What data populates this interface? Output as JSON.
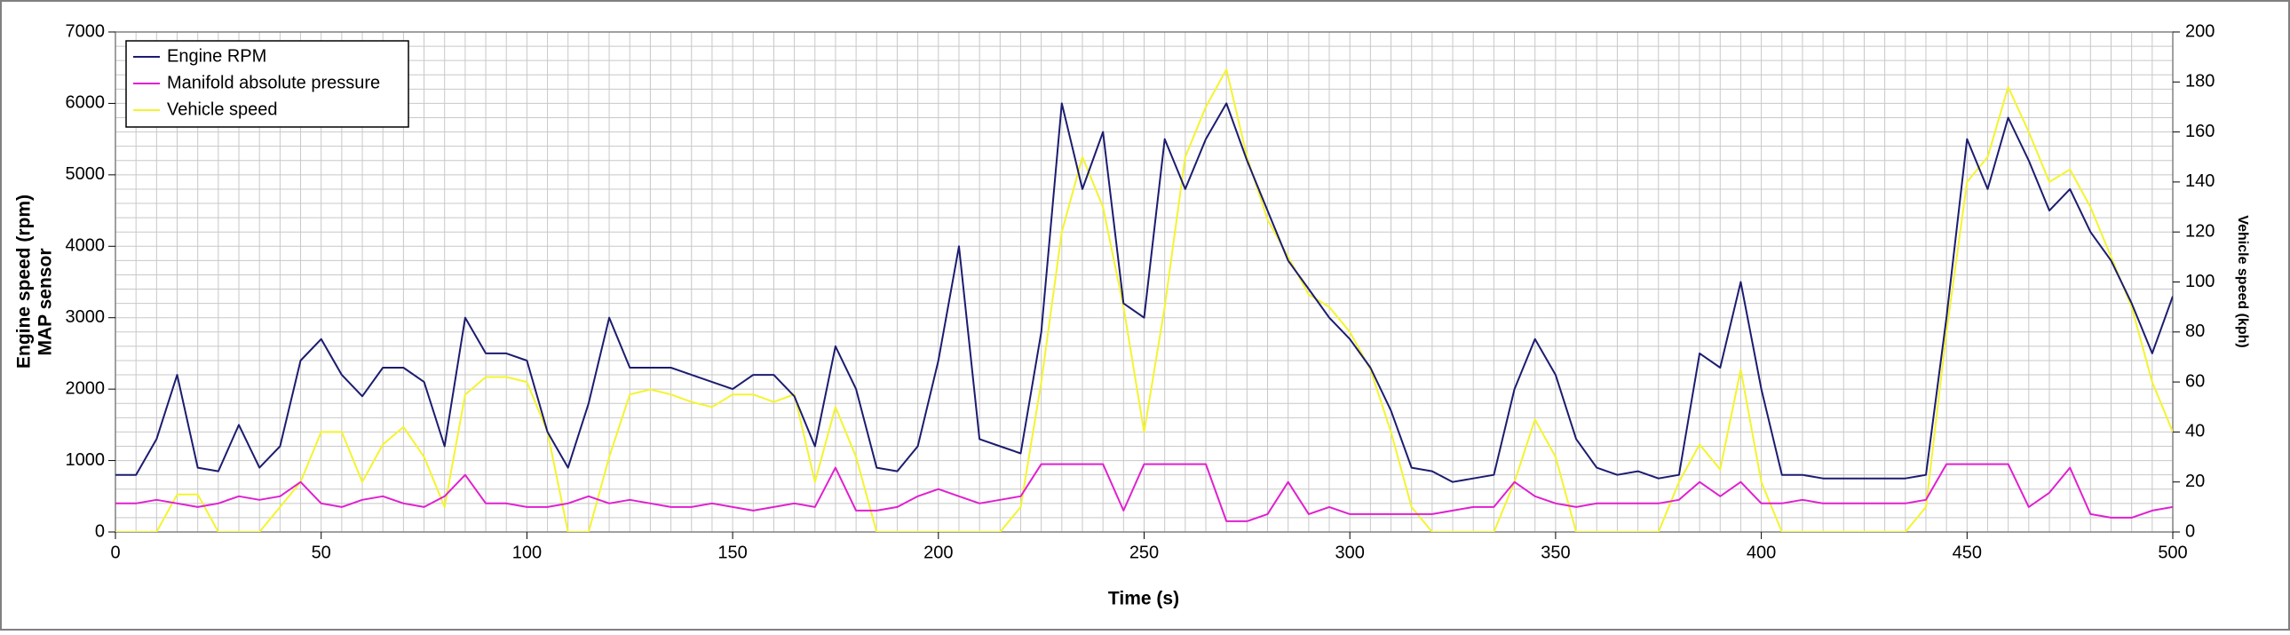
{
  "chart_data": {
    "type": "line",
    "xlabel": "Time (s)",
    "ylabel": "Engine speed (rpm)",
    "ylabel_secondary": "MAP sensor",
    "y2label": "Vehicle speed (kph)",
    "xlim": [
      0,
      500
    ],
    "xticks": [
      0,
      50,
      100,
      150,
      200,
      250,
      300,
      350,
      400,
      450,
      500
    ],
    "ylim": [
      0,
      7000
    ],
    "yticks": [
      0,
      1000,
      2000,
      3000,
      4000,
      5000,
      6000,
      7000
    ],
    "y2lim": [
      0,
      200
    ],
    "y2ticks": [
      0,
      20,
      40,
      60,
      80,
      100,
      120,
      140,
      160,
      180,
      200
    ],
    "grid": true,
    "grid_x_step": 5,
    "grid_y_step": 200,
    "legend": "upper left",
    "x": [
      0,
      5,
      10,
      15,
      20,
      25,
      30,
      35,
      40,
      45,
      50,
      55,
      60,
      65,
      70,
      75,
      80,
      85,
      90,
      95,
      100,
      105,
      110,
      115,
      120,
      125,
      130,
      135,
      140,
      145,
      150,
      155,
      160,
      165,
      170,
      175,
      180,
      185,
      190,
      195,
      200,
      205,
      210,
      215,
      220,
      225,
      230,
      235,
      240,
      245,
      250,
      255,
      260,
      265,
      270,
      275,
      280,
      285,
      290,
      295,
      300,
      305,
      310,
      315,
      320,
      325,
      330,
      335,
      340,
      345,
      350,
      355,
      360,
      365,
      370,
      375,
      380,
      385,
      390,
      395,
      400,
      405,
      410,
      415,
      420,
      425,
      430,
      435,
      440,
      445,
      450,
      455,
      460,
      465,
      470,
      475,
      480,
      485,
      490,
      495,
      500
    ],
    "series": [
      {
        "name": "Engine RPM",
        "color": "#1c1c70",
        "values": [
          800,
          800,
          1300,
          2200,
          900,
          850,
          1500,
          900,
          1200,
          2400,
          2700,
          2200,
          1900,
          2300,
          2300,
          2100,
          1200,
          3000,
          2500,
          2500,
          2400,
          1400,
          900,
          1800,
          3000,
          2300,
          2300,
          2300,
          2200,
          2100,
          2000,
          2200,
          2200,
          1900,
          1200,
          2600,
          2000,
          900,
          850,
          1200,
          2400,
          4000,
          1300,
          1200,
          1100,
          2800,
          6000,
          4800,
          5600,
          3200,
          3000,
          5500,
          4800,
          5500,
          6000,
          5200,
          4500,
          3800,
          3400,
          3000,
          2700,
          2300,
          1700,
          900,
          850,
          700,
          750,
          800,
          2000,
          2700,
          2200,
          1300,
          900,
          800,
          850,
          750,
          800,
          2500,
          2300,
          3500,
          2000,
          800,
          800,
          750,
          750,
          750,
          750,
          750,
          800,
          3000,
          5500,
          4800,
          5800,
          5200,
          4500,
          4800,
          4200,
          3800,
          3200,
          2500,
          3300
        ]
      },
      {
        "name": "Manifold absolute pressure",
        "color": "#e020d0",
        "values": [
          400,
          400,
          450,
          400,
          350,
          400,
          500,
          450,
          500,
          700,
          400,
          350,
          450,
          500,
          400,
          350,
          500,
          800,
          400,
          400,
          350,
          350,
          400,
          500,
          400,
          450,
          400,
          350,
          350,
          400,
          350,
          300,
          350,
          400,
          350,
          900,
          300,
          300,
          350,
          500,
          600,
          500,
          400,
          450,
          500,
          950,
          950,
          950,
          950,
          300,
          950,
          950,
          950,
          950,
          150,
          150,
          250,
          700,
          250,
          350,
          250,
          250,
          250,
          250,
          250,
          300,
          350,
          350,
          700,
          500,
          400,
          350,
          400,
          400,
          400,
          400,
          450,
          700,
          500,
          700,
          400,
          400,
          450,
          400,
          400,
          400,
          400,
          400,
          450,
          950,
          950,
          950,
          950,
          350,
          550,
          900,
          250,
          200,
          200,
          300,
          350
        ]
      },
      {
        "name": "Vehicle speed",
        "color": "#f4f430",
        "axis": "y2",
        "values": [
          0,
          0,
          0,
          15,
          15,
          0,
          0,
          0,
          10,
          20,
          40,
          40,
          20,
          35,
          42,
          30,
          10,
          55,
          62,
          62,
          60,
          40,
          0,
          0,
          30,
          55,
          57,
          55,
          52,
          50,
          55,
          55,
          52,
          55,
          20,
          50,
          30,
          0,
          0,
          0,
          0,
          0,
          0,
          0,
          10,
          60,
          120,
          150,
          130,
          90,
          40,
          90,
          150,
          170,
          185,
          150,
          125,
          110,
          95,
          90,
          80,
          65,
          40,
          10,
          0,
          0,
          0,
          0,
          20,
          45,
          30,
          0,
          0,
          0,
          0,
          0,
          20,
          35,
          25,
          65,
          20,
          0,
          0,
          0,
          0,
          0,
          0,
          0,
          10,
          80,
          140,
          150,
          178,
          160,
          140,
          145,
          130,
          110,
          90,
          60,
          40
        ]
      }
    ]
  }
}
